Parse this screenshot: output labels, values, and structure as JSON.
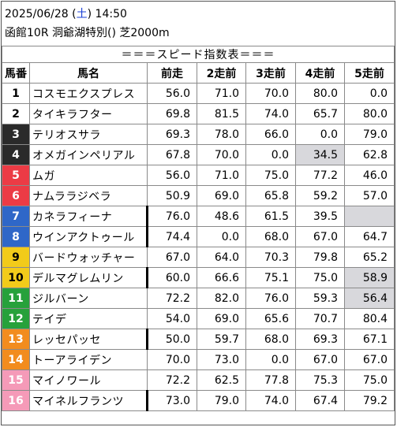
{
  "header": {
    "date": "2025/06/28",
    "weekday": "土",
    "time": "14:50",
    "race": "函館10R 洞爺湖特別() 芝2000m"
  },
  "table": {
    "title": "＝＝＝スピード指数表＝＝＝",
    "columns": [
      "馬番",
      "馬名",
      "前走",
      "2走前",
      "3走前",
      "4走前",
      "5走前"
    ],
    "colors": {
      "1": "#ffffff",
      "2": "#ffffff",
      "3": "#2a2a2a",
      "4": "#2a2a2a",
      "5": "#ec3b45",
      "6": "#ec3b45",
      "7": "#2f67c8",
      "8": "#2f67c8",
      "9": "#f2cb1a",
      "10": "#f2cb1a",
      "11": "#27a13b",
      "12": "#27a13b",
      "13": "#f28c1e",
      "14": "#f28c1e",
      "15": "#f59ab8",
      "16": "#f59ab8"
    },
    "rows": [
      {
        "num": "1",
        "name": "コスモエクスプレス",
        "v": [
          "56.0",
          "71.0",
          "70.0",
          "80.0",
          "0.0"
        ]
      },
      {
        "num": "2",
        "name": "タイキラフター",
        "v": [
          "69.8",
          "81.5",
          "74.0",
          "65.7",
          "80.0"
        ]
      },
      {
        "num": "3",
        "name": "テリオスサラ",
        "v": [
          "69.3",
          "78.0",
          "66.0",
          "0.0",
          "79.0"
        ]
      },
      {
        "num": "4",
        "name": "オメガインペリアル",
        "v": [
          "67.8",
          "70.0",
          "0.0",
          "34.5",
          "62.8"
        ],
        "grey": [
          3
        ]
      },
      {
        "num": "5",
        "name": "ムガ",
        "v": [
          "56.0",
          "71.0",
          "75.0",
          "77.2",
          "46.0"
        ]
      },
      {
        "num": "6",
        "name": "ナムララジベラ",
        "v": [
          "50.9",
          "69.0",
          "65.8",
          "59.2",
          "57.0"
        ]
      },
      {
        "num": "7",
        "name": "カネラフィーナ",
        "v": [
          "76.0",
          "48.6",
          "61.5",
          "39.5",
          ""
        ],
        "grey": [
          4
        ],
        "bar": true
      },
      {
        "num": "8",
        "name": "ウインアクトゥール",
        "v": [
          "74.4",
          "0.0",
          "68.0",
          "67.0",
          "64.7"
        ],
        "bar": true
      },
      {
        "num": "9",
        "name": "バードウォッチャー",
        "v": [
          "67.0",
          "64.0",
          "70.3",
          "79.8",
          "65.2"
        ]
      },
      {
        "num": "10",
        "name": "デルマグレムリン",
        "v": [
          "60.0",
          "66.6",
          "75.1",
          "75.0",
          "58.9"
        ],
        "grey": [
          4
        ],
        "bar": true
      },
      {
        "num": "11",
        "name": "ジルバーン",
        "v": [
          "72.2",
          "82.0",
          "76.0",
          "59.3",
          "56.4"
        ],
        "grey": [
          4
        ]
      },
      {
        "num": "12",
        "name": "テイデ",
        "v": [
          "54.0",
          "69.0",
          "65.6",
          "70.7",
          "80.4"
        ]
      },
      {
        "num": "13",
        "name": "レッセパッセ",
        "v": [
          "50.0",
          "59.7",
          "68.0",
          "69.3",
          "67.1"
        ],
        "bar": true
      },
      {
        "num": "14",
        "name": "トーアライデン",
        "v": [
          "70.0",
          "73.0",
          "0.0",
          "67.0",
          "67.0"
        ]
      },
      {
        "num": "15",
        "name": "マイノワール",
        "v": [
          "72.2",
          "62.5",
          "77.8",
          "75.3",
          "75.0"
        ]
      },
      {
        "num": "16",
        "name": "マイネルフランツ",
        "v": [
          "73.0",
          "79.0",
          "74.0",
          "67.4",
          "79.2"
        ],
        "bar": true
      }
    ]
  }
}
